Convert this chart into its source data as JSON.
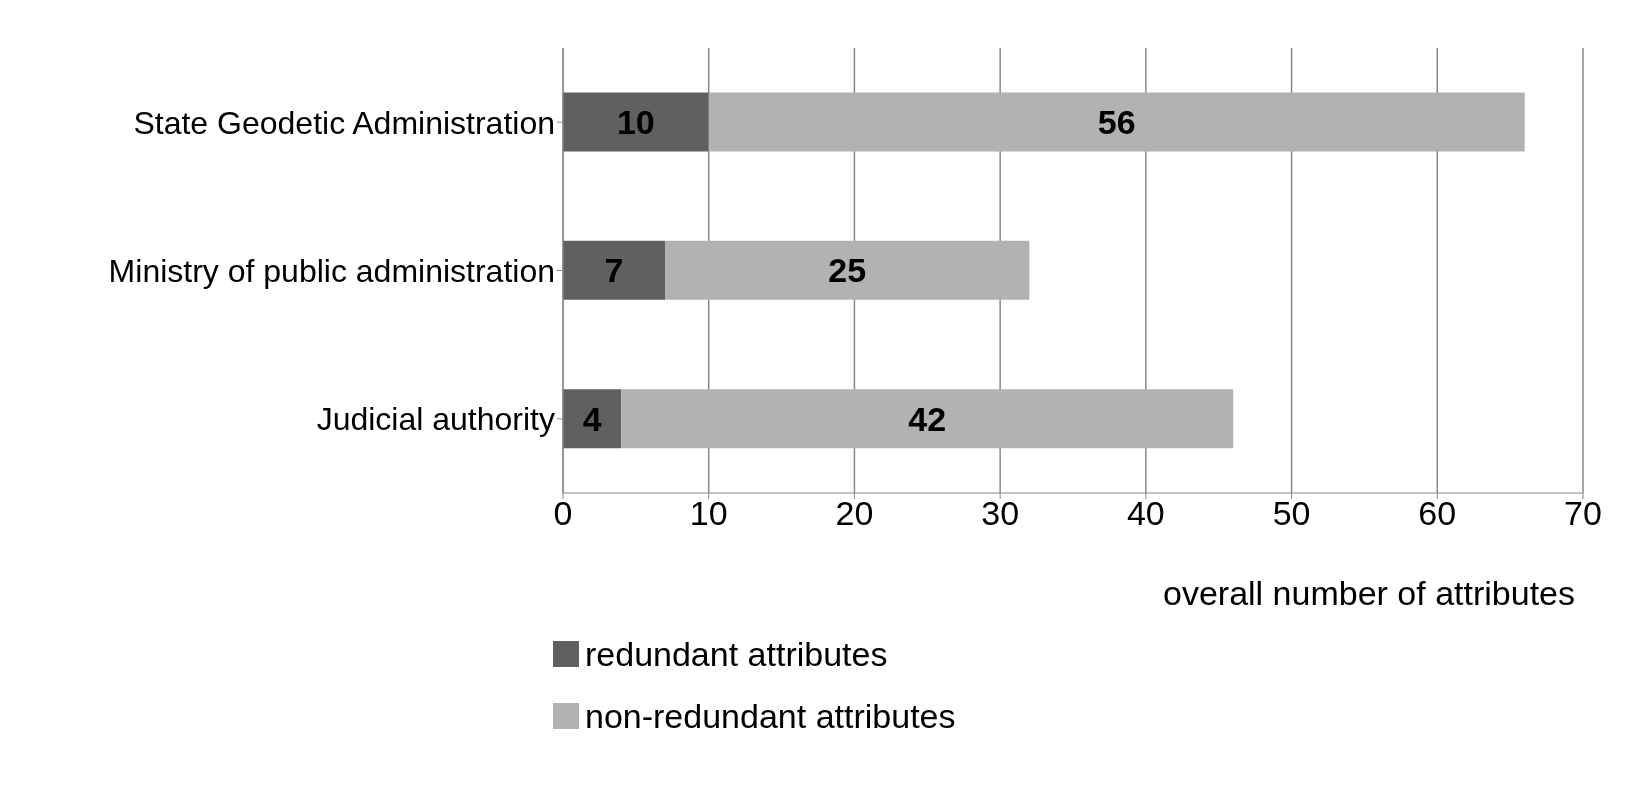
{
  "chart_data": {
    "type": "bar",
    "orientation": "horizontal",
    "stacked": true,
    "xlabel": "overall number of attributes",
    "categories": [
      "State Geodetic Administration",
      "Ministry of public administration",
      "Judicial authority"
    ],
    "series": [
      {
        "name": "redundant attributes",
        "color": "#606060",
        "values": [
          10,
          7,
          4
        ]
      },
      {
        "name": "non-redundant attributes",
        "color": "#b2b2b2",
        "values": [
          56,
          25,
          42
        ]
      }
    ],
    "xlim": [
      0,
      70
    ],
    "xticks": [
      0,
      10,
      20,
      30,
      40,
      50,
      60,
      70
    ],
    "grid": "x",
    "legend": "bottom",
    "data_labels": true
  }
}
